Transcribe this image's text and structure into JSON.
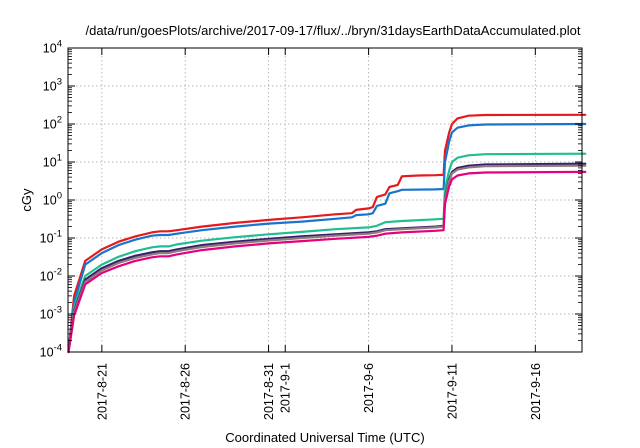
{
  "chart_data": {
    "type": "line",
    "title": "/data/run/goesPlots/archive/2017-09-17/flux/../bryn/31daysEarthDataAccumulated.plot",
    "xlabel": "Coordinated Universal Time (UTC)",
    "ylabel": "cGy",
    "y_scale": "log",
    "ylim": [
      0.0001,
      10000
    ],
    "y_ticks": [
      {
        "base": "10",
        "exp": "-4",
        "value": 0.0001
      },
      {
        "base": "10",
        "exp": "-3",
        "value": 0.001
      },
      {
        "base": "10",
        "exp": "-2",
        "value": 0.01
      },
      {
        "base": "10",
        "exp": "-1",
        "value": 0.1
      },
      {
        "base": "10",
        "exp": "0",
        "value": 1
      },
      {
        "base": "10",
        "exp": "1",
        "value": 10
      },
      {
        "base": "10",
        "exp": "2",
        "value": 100
      },
      {
        "base": "10",
        "exp": "3",
        "value": 1000
      },
      {
        "base": "10",
        "exp": "4",
        "value": 10000
      }
    ],
    "xlim": [
      "2017-08-19",
      "2017-09-19"
    ],
    "x_ticks": [
      {
        "date": "2017-08-21",
        "label": "2017-8-21"
      },
      {
        "date": "2017-08-26",
        "label": "2017-8-26"
      },
      {
        "date": "2017-08-31",
        "label": "2017-8-31"
      },
      {
        "date": "2017-09-01",
        "label": "2017-9-1"
      },
      {
        "date": "2017-09-06",
        "label": "2017-9-6"
      },
      {
        "date": "2017-09-11",
        "label": "2017-9-11"
      },
      {
        "date": "2017-09-16",
        "label": "2017-9-16"
      }
    ],
    "grid": true,
    "series": [
      {
        "color": "#e41a1c",
        "points": [
          [
            "2017-08-19",
            0.0001
          ],
          [
            "2017-08-19T08",
            0.003
          ],
          [
            "2017-08-20",
            0.025
          ],
          [
            "2017-08-21",
            0.05
          ],
          [
            "2017-08-22",
            0.08
          ],
          [
            "2017-08-23",
            0.11
          ],
          [
            "2017-08-24",
            0.14
          ],
          [
            "2017-08-24T12",
            0.15
          ],
          [
            "2017-08-25",
            0.15
          ],
          [
            "2017-08-25T12",
            0.16
          ],
          [
            "2017-08-27",
            0.2
          ],
          [
            "2017-08-29",
            0.25
          ],
          [
            "2017-08-31",
            0.3
          ],
          [
            "2017-09-02",
            0.35
          ],
          [
            "2017-09-04",
            0.42
          ],
          [
            "2017-09-05",
            0.45
          ],
          [
            "2017-09-05T06",
            0.55
          ],
          [
            "2017-09-06",
            0.6
          ],
          [
            "2017-09-06T06",
            0.65
          ],
          [
            "2017-09-06T12",
            1.2
          ],
          [
            "2017-09-07",
            1.4
          ],
          [
            "2017-09-07T06",
            2.2
          ],
          [
            "2017-09-07T18",
            2.5
          ],
          [
            "2017-09-08",
            4.2
          ],
          [
            "2017-09-09",
            4.4
          ],
          [
            "2017-09-10",
            4.5
          ],
          [
            "2017-09-10T12",
            4.6
          ],
          [
            "2017-09-10T14",
            20
          ],
          [
            "2017-09-10T20",
            60
          ],
          [
            "2017-09-11",
            100
          ],
          [
            "2017-09-11T08",
            140
          ],
          [
            "2017-09-12",
            165
          ],
          [
            "2017-09-13",
            172
          ],
          [
            "2017-09-19",
            175
          ]
        ]
      },
      {
        "color": "#1874cd",
        "points": [
          [
            "2017-08-19",
            0.0001
          ],
          [
            "2017-08-19T08",
            0.002
          ],
          [
            "2017-08-20",
            0.02
          ],
          [
            "2017-08-21",
            0.04
          ],
          [
            "2017-08-22",
            0.065
          ],
          [
            "2017-08-23",
            0.09
          ],
          [
            "2017-08-24",
            0.115
          ],
          [
            "2017-08-24T12",
            0.12
          ],
          [
            "2017-08-25",
            0.12
          ],
          [
            "2017-08-25T12",
            0.13
          ],
          [
            "2017-08-27",
            0.16
          ],
          [
            "2017-08-29",
            0.2
          ],
          [
            "2017-08-31",
            0.24
          ],
          [
            "2017-09-02",
            0.27
          ],
          [
            "2017-09-04",
            0.32
          ],
          [
            "2017-09-05",
            0.35
          ],
          [
            "2017-09-05T06",
            0.4
          ],
          [
            "2017-09-06",
            0.42
          ],
          [
            "2017-09-06T06",
            0.45
          ],
          [
            "2017-09-06T12",
            0.7
          ],
          [
            "2017-09-07",
            0.8
          ],
          [
            "2017-09-07T06",
            1.5
          ],
          [
            "2017-09-07T18",
            1.7
          ],
          [
            "2017-09-08",
            1.85
          ],
          [
            "2017-09-10",
            1.9
          ],
          [
            "2017-09-10T12",
            1.95
          ],
          [
            "2017-09-10T14",
            10
          ],
          [
            "2017-09-10T20",
            35
          ],
          [
            "2017-09-11",
            60
          ],
          [
            "2017-09-11T08",
            80
          ],
          [
            "2017-09-12",
            92
          ],
          [
            "2017-09-13",
            97
          ],
          [
            "2017-09-19",
            100
          ]
        ]
      },
      {
        "color": "#1fbf8f",
        "points": [
          [
            "2017-08-19",
            0.0001
          ],
          [
            "2017-08-19T08",
            0.0015
          ],
          [
            "2017-08-20",
            0.01
          ],
          [
            "2017-08-21",
            0.02
          ],
          [
            "2017-08-22",
            0.032
          ],
          [
            "2017-08-23",
            0.045
          ],
          [
            "2017-08-24",
            0.057
          ],
          [
            "2017-08-24T12",
            0.06
          ],
          [
            "2017-08-25",
            0.06
          ],
          [
            "2017-08-25T12",
            0.068
          ],
          [
            "2017-08-27",
            0.085
          ],
          [
            "2017-08-29",
            0.105
          ],
          [
            "2017-08-31",
            0.125
          ],
          [
            "2017-09-02",
            0.145
          ],
          [
            "2017-09-04",
            0.17
          ],
          [
            "2017-09-06",
            0.19
          ],
          [
            "2017-09-06T12",
            0.21
          ],
          [
            "2017-09-07",
            0.26
          ],
          [
            "2017-09-08",
            0.28
          ],
          [
            "2017-09-10",
            0.31
          ],
          [
            "2017-09-10T12",
            0.32
          ],
          [
            "2017-09-10T14",
            2
          ],
          [
            "2017-09-10T20",
            6
          ],
          [
            "2017-09-11",
            10
          ],
          [
            "2017-09-11T08",
            13
          ],
          [
            "2017-09-12",
            15
          ],
          [
            "2017-09-13",
            16
          ],
          [
            "2017-09-19",
            16.5
          ]
        ]
      },
      {
        "color": "#3a1e6e",
        "points": [
          [
            "2017-08-19",
            0.0001
          ],
          [
            "2017-08-19T08",
            0.0012
          ],
          [
            "2017-08-20",
            0.008
          ],
          [
            "2017-08-21",
            0.016
          ],
          [
            "2017-08-22",
            0.025
          ],
          [
            "2017-08-23",
            0.034
          ],
          [
            "2017-08-24",
            0.042
          ],
          [
            "2017-08-24T12",
            0.045
          ],
          [
            "2017-08-25",
            0.045
          ],
          [
            "2017-08-25T12",
            0.05
          ],
          [
            "2017-08-27",
            0.065
          ],
          [
            "2017-08-29",
            0.08
          ],
          [
            "2017-08-31",
            0.095
          ],
          [
            "2017-09-02",
            0.11
          ],
          [
            "2017-09-04",
            0.125
          ],
          [
            "2017-09-06",
            0.14
          ],
          [
            "2017-09-06T12",
            0.15
          ],
          [
            "2017-09-07",
            0.17
          ],
          [
            "2017-09-08",
            0.18
          ],
          [
            "2017-09-10",
            0.2
          ],
          [
            "2017-09-10T12",
            0.21
          ],
          [
            "2017-09-10T14",
            1.2
          ],
          [
            "2017-09-10T20",
            3.5
          ],
          [
            "2017-09-11",
            5.5
          ],
          [
            "2017-09-11T08",
            7
          ],
          [
            "2017-09-12",
            8
          ],
          [
            "2017-09-13",
            8.6
          ],
          [
            "2017-09-19",
            9
          ]
        ]
      },
      {
        "color": "#8b7d7b",
        "points": [
          [
            "2017-08-19",
            0.0001
          ],
          [
            "2017-08-19T08",
            0.0011
          ],
          [
            "2017-08-20",
            0.007
          ],
          [
            "2017-08-21",
            0.014
          ],
          [
            "2017-08-22",
            0.022
          ],
          [
            "2017-08-23",
            0.03
          ],
          [
            "2017-08-24",
            0.037
          ],
          [
            "2017-08-24T12",
            0.04
          ],
          [
            "2017-08-25",
            0.04
          ],
          [
            "2017-08-25T12",
            0.045
          ],
          [
            "2017-08-27",
            0.058
          ],
          [
            "2017-08-29",
            0.072
          ],
          [
            "2017-08-31",
            0.086
          ],
          [
            "2017-09-02",
            0.1
          ],
          [
            "2017-09-04",
            0.115
          ],
          [
            "2017-09-06",
            0.13
          ],
          [
            "2017-09-06T12",
            0.14
          ],
          [
            "2017-09-07",
            0.16
          ],
          [
            "2017-09-08",
            0.17
          ],
          [
            "2017-09-10",
            0.19
          ],
          [
            "2017-09-10T12",
            0.2
          ],
          [
            "2017-09-10T14",
            1.1
          ],
          [
            "2017-09-10T20",
            3.2
          ],
          [
            "2017-09-11",
            5
          ],
          [
            "2017-09-11T08",
            6.3
          ],
          [
            "2017-09-12",
            7.2
          ],
          [
            "2017-09-13",
            7.8
          ],
          [
            "2017-09-19",
            8
          ]
        ]
      },
      {
        "color": "#e6007e",
        "points": [
          [
            "2017-08-19",
            0.0001
          ],
          [
            "2017-08-19T08",
            0.0009
          ],
          [
            "2017-08-20",
            0.006
          ],
          [
            "2017-08-21",
            0.012
          ],
          [
            "2017-08-22",
            0.018
          ],
          [
            "2017-08-23",
            0.025
          ],
          [
            "2017-08-24",
            0.031
          ],
          [
            "2017-08-24T12",
            0.033
          ],
          [
            "2017-08-25",
            0.033
          ],
          [
            "2017-08-25T12",
            0.037
          ],
          [
            "2017-08-27",
            0.048
          ],
          [
            "2017-08-29",
            0.06
          ],
          [
            "2017-08-31",
            0.072
          ],
          [
            "2017-09-02",
            0.083
          ],
          [
            "2017-09-04",
            0.095
          ],
          [
            "2017-09-06",
            0.107
          ],
          [
            "2017-09-06T12",
            0.115
          ],
          [
            "2017-09-07",
            0.13
          ],
          [
            "2017-09-08",
            0.14
          ],
          [
            "2017-09-10",
            0.155
          ],
          [
            "2017-09-10T12",
            0.16
          ],
          [
            "2017-09-10T14",
            0.8
          ],
          [
            "2017-09-10T20",
            2.3
          ],
          [
            "2017-09-11",
            3.5
          ],
          [
            "2017-09-11T08",
            4.4
          ],
          [
            "2017-09-12",
            5
          ],
          [
            "2017-09-13",
            5.3
          ],
          [
            "2017-09-19",
            5.5
          ]
        ]
      }
    ]
  }
}
